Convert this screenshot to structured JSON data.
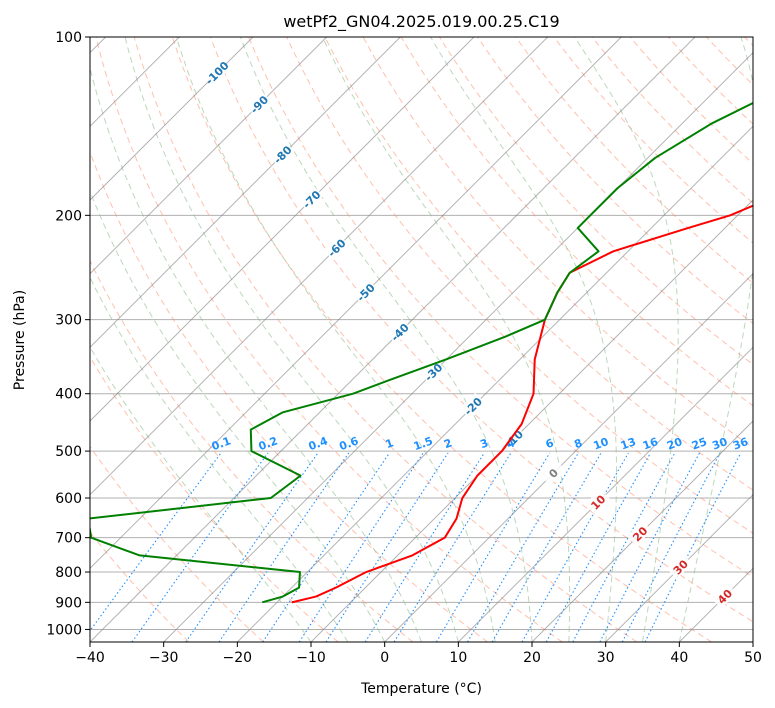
{
  "chart_data": {
    "type": "line",
    "title": "wetPf2_GN04.2025.019.00.25.C19",
    "xlabel": "Temperature (°C)",
    "ylabel": "Pressure (hPa)",
    "xlim": [
      -40,
      50
    ],
    "ylim": [
      1050,
      100
    ],
    "y_scale": "log",
    "grid": true,
    "x_ticks": [
      -40,
      -30,
      -20,
      -10,
      0,
      10,
      20,
      30,
      40,
      50
    ],
    "y_ticks": [
      100,
      200,
      300,
      400,
      500,
      600,
      700,
      800,
      900,
      1000
    ],
    "skew_degrees": 45,
    "colors": {
      "temperature": "#ff0000",
      "dewpoint": "#008000",
      "isotherm": "#808080",
      "dry_adiabat": "#ff8c69",
      "moist_adiabat": "#8fbc8f",
      "mixing_ratio": "#1e90ff",
      "isotherm_label_cold": "#1f77b4",
      "isotherm_label_warm": "#d62728",
      "isotherm_label_zero": "#808080"
    },
    "series": [
      {
        "role": "temperature",
        "points": [
          [
            -18,
            900
          ],
          [
            -15.5,
            880
          ],
          [
            -14,
            850
          ],
          [
            -12,
            800
          ],
          [
            -8,
            750
          ],
          [
            -6,
            700
          ],
          [
            -7,
            650
          ],
          [
            -9,
            600
          ],
          [
            -10,
            550
          ],
          [
            -10,
            500
          ],
          [
            -11,
            450
          ],
          [
            -13.5,
            400
          ],
          [
            -18,
            350
          ],
          [
            -22,
            300
          ],
          [
            -24,
            270
          ],
          [
            -25,
            250
          ],
          [
            -22,
            230
          ],
          [
            -15,
            210
          ],
          [
            -11,
            200
          ],
          [
            -6,
            180
          ],
          [
            -1,
            160
          ],
          [
            2,
            140
          ],
          [
            6,
            125
          ],
          [
            10,
            110
          ],
          [
            12,
            100
          ]
        ]
      },
      {
        "role": "dewpoint",
        "points": [
          [
            -22,
            900
          ],
          [
            -20,
            880
          ],
          [
            -19,
            850
          ],
          [
            -21,
            800
          ],
          [
            -45,
            750
          ],
          [
            -54,
            700
          ],
          [
            -57,
            650
          ],
          [
            -35,
            600
          ],
          [
            -34,
            550
          ],
          [
            -44,
            500
          ],
          [
            -47,
            460
          ],
          [
            -45,
            430
          ],
          [
            -38,
            400
          ],
          [
            -35,
            380
          ],
          [
            -30,
            350
          ],
          [
            -25,
            320
          ],
          [
            -22,
            300
          ],
          [
            -24,
            270
          ],
          [
            -25,
            250
          ],
          [
            -24,
            230
          ],
          [
            -30,
            210
          ],
          [
            -30,
            200
          ],
          [
            -30,
            180
          ],
          [
            -29,
            160
          ],
          [
            -26,
            140
          ],
          [
            -22,
            125
          ],
          [
            -20,
            110
          ],
          [
            -20,
            100
          ]
        ]
      }
    ],
    "isotherm_labels": [
      {
        "value": -100,
        "text": "-100",
        "p": 115
      },
      {
        "value": -90,
        "text": "-90",
        "p": 130
      },
      {
        "value": -80,
        "text": "-80",
        "p": 158
      },
      {
        "value": -70,
        "text": "-70",
        "p": 188
      },
      {
        "value": -60,
        "text": "-60",
        "p": 227
      },
      {
        "value": -50,
        "text": "-50",
        "p": 270
      },
      {
        "value": -40,
        "text": "-40",
        "p": 315
      },
      {
        "value": -30,
        "text": "-30",
        "p": 368
      },
      {
        "value": -20,
        "text": "-20",
        "p": 420
      },
      {
        "value": -10,
        "text": "-10",
        "p": 477
      },
      {
        "value": 0,
        "text": "0",
        "p": 545
      },
      {
        "value": 10,
        "text": "10",
        "p": 610
      },
      {
        "value": 20,
        "text": "20",
        "p": 690
      },
      {
        "value": 30,
        "text": "30",
        "p": 785
      },
      {
        "value": 40,
        "text": "40",
        "p": 880
      }
    ],
    "mixing_ratio_labels": [
      "0.1",
      "0.2",
      "0.4",
      "0.6",
      "1",
      "1.5",
      "2",
      "3",
      "4",
      "6",
      "8",
      "10",
      "13",
      "16",
      "20",
      "25",
      "30",
      "36"
    ],
    "mixing_ratio_label_pressure": 500,
    "mixing_ratio_values": [
      0.1,
      0.2,
      0.4,
      0.6,
      1,
      1.5,
      2,
      3,
      4,
      6,
      8,
      10,
      13,
      16,
      20,
      25,
      30,
      36
    ]
  }
}
